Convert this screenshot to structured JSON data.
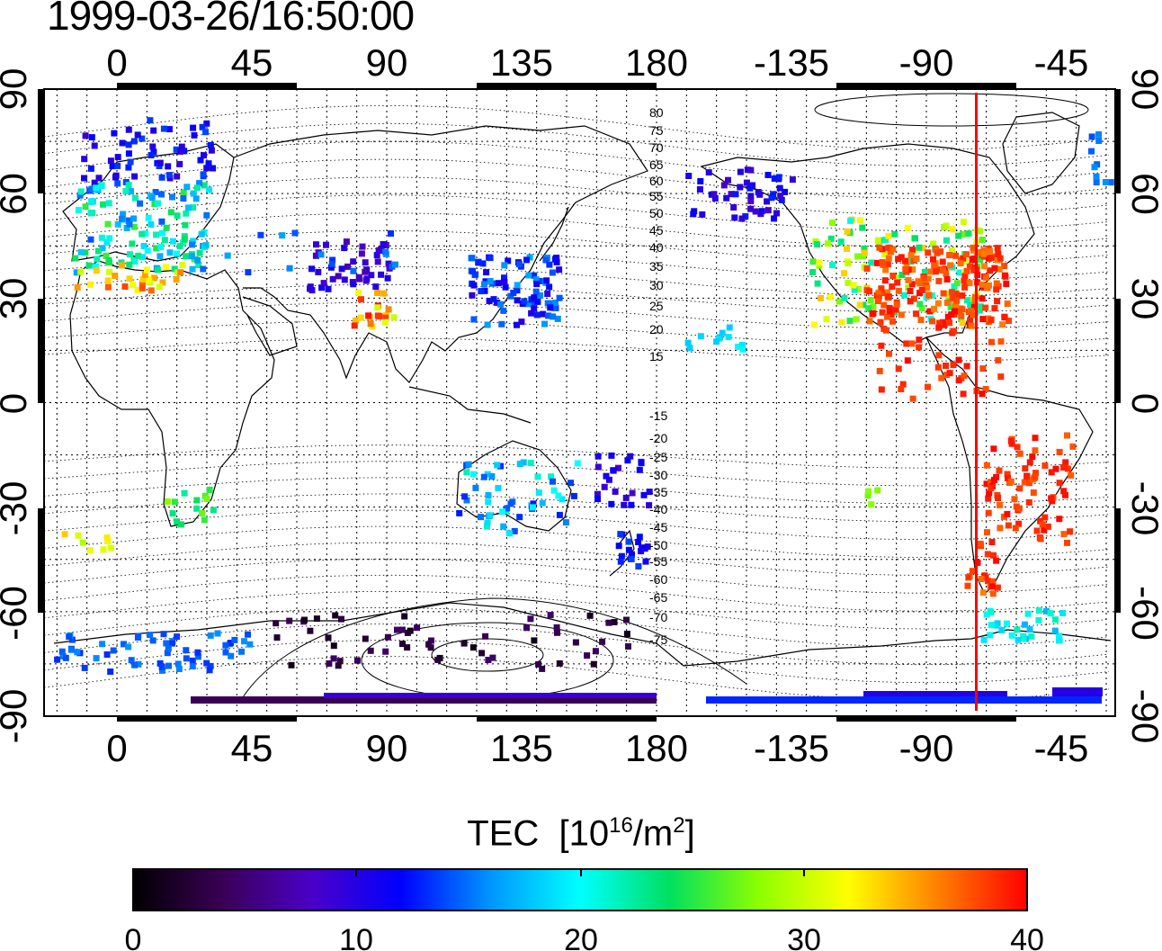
{
  "title": "1999-03-26/16:50:00",
  "top_lon_labels": [
    "0",
    "45",
    "90",
    "135",
    "180",
    "-135",
    "-90",
    "-45"
  ],
  "bottom_lon_labels": [
    "0",
    "45",
    "90",
    "135",
    "180",
    "-135",
    "-90",
    "-45"
  ],
  "left_lat_labels": [
    "90",
    "60",
    "30",
    "0",
    "-30",
    "-60",
    "-90"
  ],
  "right_lat_labels": [
    "90",
    "60",
    "30",
    "0",
    "-30",
    "-60",
    "-90"
  ],
  "contour_labels": [
    "80",
    "75",
    "70",
    "65",
    "60",
    "55",
    "50",
    "45",
    "40",
    "35",
    "30",
    "25",
    "20",
    "15",
    "-15",
    "-20",
    "-25",
    "-30",
    "-35",
    "-40",
    "-45",
    "-50",
    "-55",
    "-60",
    "-65",
    "-70",
    "-75"
  ],
  "colorbar": {
    "title": "TEC",
    "unit_base": "10",
    "unit_exp": "16",
    "unit_per": "/m",
    "unit_exp2": "2",
    "ticks": [
      "0",
      "10",
      "20",
      "30",
      "40"
    ],
    "min": 0,
    "max": 40,
    "colors": [
      "#000000",
      "#3a0055",
      "#4b00c8",
      "#0000ff",
      "#0096ff",
      "#00ffff",
      "#00e060",
      "#8cff00",
      "#ffff00",
      "#ff8000",
      "#ff0000"
    ]
  },
  "red_line_longitude": -71,
  "colors": {
    "frame": "#000000",
    "red_line": "#ff0000",
    "coast": "#000000",
    "grid": "#000000"
  }
}
